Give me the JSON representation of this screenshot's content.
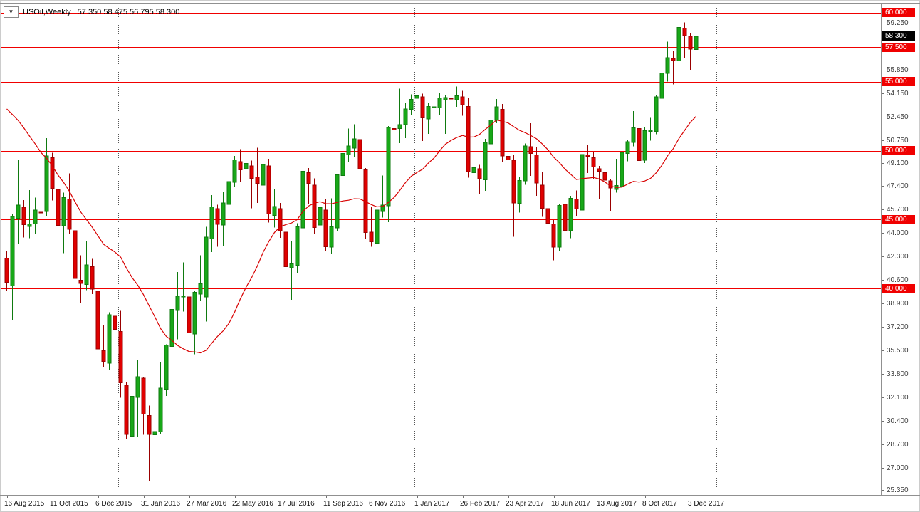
{
  "header": {
    "dropdown_icon": "▼",
    "symbol_period": "USOil,Weekly",
    "ohlc_text": "57.350 58.475 56.795 58.300"
  },
  "colors": {
    "bull": "#18a818",
    "bull_border": "#0f7a0f",
    "bear": "#e00000",
    "bear_border": "#9a0000",
    "level_line": "#f00000",
    "ma_line": "#d80000",
    "tag_red_bg": "#f00000",
    "tag_black_bg": "#000000",
    "axis_text": "#3a3a3a",
    "separator_dotted": "#555555",
    "frame": "#909090"
  },
  "chart_data": {
    "type": "candlestick",
    "title": "USOil,Weekly",
    "symbol": "USOil",
    "timeframe": "Weekly",
    "grid": "off",
    "current_bar": {
      "open": 57.35,
      "high": 58.475,
      "low": 56.795,
      "close": 58.3
    },
    "current_price": 58.3,
    "horizontal_lines": [
      60.0,
      57.5,
      55.0,
      50.0,
      45.0,
      40.0
    ],
    "period_separator_indices": [
      20,
      72,
      125
    ],
    "price_axis": {
      "ylim": [
        25.04,
        60.67
      ],
      "ticks": [
        59.25,
        55.85,
        54.15,
        52.45,
        50.75,
        49.1,
        47.4,
        45.7,
        44.0,
        42.3,
        40.6,
        38.9,
        37.2,
        35.5,
        33.8,
        32.1,
        30.4,
        28.7,
        27.0,
        25.35
      ]
    },
    "time_axis": {
      "labels": [
        {
          "index": 0,
          "label": "16 Aug 2015"
        },
        {
          "index": 8,
          "label": "11 Oct 2015"
        },
        {
          "index": 16,
          "label": "6 Dec 2015"
        },
        {
          "index": 24,
          "label": "31 Jan 2016"
        },
        {
          "index": 32,
          "label": "27 Mar 2016"
        },
        {
          "index": 40,
          "label": "22 May 2016"
        },
        {
          "index": 48,
          "label": "17 Jul 2016"
        },
        {
          "index": 56,
          "label": "11 Sep 2016"
        },
        {
          "index": 64,
          "label": "6 Nov 2016"
        },
        {
          "index": 72,
          "label": "1 Jan 2017"
        },
        {
          "index": 80,
          "label": "26 Feb 2017"
        },
        {
          "index": 88,
          "label": "23 Apr 2017"
        },
        {
          "index": 96,
          "label": "18 Jun 2017"
        },
        {
          "index": 104,
          "label": "13 Aug 2017"
        },
        {
          "index": 112,
          "label": "8 Oct 2017"
        },
        {
          "index": 120,
          "label": "3 Dec 2017"
        }
      ]
    },
    "moving_average": {
      "type": "SMA",
      "period": 20,
      "prehistory_closes": [
        53.5,
        54.5,
        55.5,
        56.5,
        57.2,
        57.8,
        58.1,
        58.3,
        57.9,
        57.5,
        57.0,
        56.2,
        55.0,
        52.7,
        50.9,
        48.1,
        47.1,
        43.9,
        42.5
      ]
    },
    "candles": [
      [
        "2015-08-16",
        42.2,
        42.69,
        39.86,
        40.45
      ],
      [
        "2015-08-23",
        40.2,
        45.41,
        37.75,
        45.22
      ],
      [
        "2015-08-30",
        45.1,
        49.33,
        43.21,
        46.05
      ],
      [
        "2015-09-06",
        45.9,
        46.43,
        43.7,
        44.63
      ],
      [
        "2015-09-13",
        44.5,
        47.15,
        43.65,
        44.68
      ],
      [
        "2015-09-20",
        44.7,
        46.6,
        43.95,
        45.7
      ],
      [
        "2015-09-27",
        45.55,
        46.3,
        43.97,
        45.54
      ],
      [
        "2015-10-04",
        45.6,
        50.92,
        45.23,
        49.63
      ],
      [
        "2015-10-11",
        49.5,
        49.84,
        46.38,
        47.26
      ],
      [
        "2015-10-18",
        47.2,
        47.74,
        44.2,
        44.6
      ],
      [
        "2015-10-25",
        44.55,
        46.95,
        42.58,
        46.59
      ],
      [
        "2015-11-01",
        46.5,
        48.36,
        43.98,
        44.29
      ],
      [
        "2015-11-08",
        44.2,
        44.82,
        40.06,
        40.74
      ],
      [
        "2015-11-15",
        40.6,
        42.42,
        38.99,
        40.39
      ],
      [
        "2015-11-22",
        40.3,
        43.46,
        39.89,
        41.71
      ],
      [
        "2015-11-29",
        41.6,
        42.16,
        39.6,
        39.97
      ],
      [
        "2015-12-06",
        39.8,
        40.16,
        35.56,
        35.62
      ],
      [
        "2015-12-13",
        35.5,
        37.38,
        34.29,
        34.73
      ],
      [
        "2015-12-20",
        34.6,
        38.28,
        34.12,
        38.1
      ],
      [
        "2015-12-27",
        38.0,
        38.09,
        36.08,
        37.04
      ],
      [
        "2016-01-03",
        36.9,
        38.39,
        32.1,
        33.16
      ],
      [
        "2016-01-10",
        33.0,
        33.2,
        29.13,
        29.42
      ],
      [
        "2016-01-17",
        29.3,
        32.74,
        26.19,
        32.19
      ],
      [
        "2016-01-24",
        32.1,
        34.82,
        29.25,
        33.62
      ],
      [
        "2016-01-31",
        33.5,
        33.6,
        29.4,
        30.89
      ],
      [
        "2016-02-07",
        30.8,
        31.53,
        26.05,
        29.44
      ],
      [
        "2016-02-14",
        29.4,
        31.98,
        28.74,
        29.64
      ],
      [
        "2016-02-21",
        29.6,
        34.69,
        29.43,
        32.78
      ],
      [
        "2016-02-28",
        32.7,
        35.97,
        32.22,
        35.92
      ],
      [
        "2016-03-06",
        35.8,
        38.93,
        35.66,
        38.5
      ],
      [
        "2016-03-13",
        38.4,
        41.2,
        36.33,
        39.44
      ],
      [
        "2016-03-20",
        39.4,
        41.9,
        38.33,
        39.46
      ],
      [
        "2016-03-27",
        39.4,
        39.79,
        36.57,
        36.79
      ],
      [
        "2016-04-03",
        36.7,
        39.84,
        35.24,
        39.72
      ],
      [
        "2016-04-10",
        39.6,
        42.42,
        39.11,
        40.36
      ],
      [
        "2016-04-17",
        39.4,
        44.49,
        37.61,
        43.73
      ],
      [
        "2016-04-24",
        43.6,
        46.78,
        42.64,
        45.92
      ],
      [
        "2016-05-01",
        45.8,
        46.07,
        43.03,
        44.66
      ],
      [
        "2016-05-08",
        44.6,
        47.02,
        43.07,
        46.21
      ],
      [
        "2016-05-15",
        46.1,
        48.28,
        45.88,
        47.75
      ],
      [
        "2016-05-22",
        47.7,
        49.62,
        47.4,
        49.33
      ],
      [
        "2016-05-29",
        49.2,
        50.1,
        47.75,
        48.62
      ],
      [
        "2016-06-05",
        48.7,
        51.67,
        48.19,
        49.07
      ],
      [
        "2016-06-12",
        48.9,
        49.28,
        45.83,
        47.98
      ],
      [
        "2016-06-19",
        48.1,
        50.21,
        46.22,
        47.64
      ],
      [
        "2016-06-26",
        47.5,
        49.6,
        45.83,
        48.99
      ],
      [
        "2016-07-03",
        48.9,
        49.41,
        44.78,
        45.41
      ],
      [
        "2016-07-10",
        45.3,
        47.22,
        44.42,
        45.95
      ],
      [
        "2016-07-17",
        45.8,
        46.2,
        43.69,
        44.19
      ],
      [
        "2016-07-24",
        44.1,
        44.53,
        40.57,
        41.6
      ],
      [
        "2016-07-31",
        41.5,
        43.42,
        39.19,
        41.8
      ],
      [
        "2016-08-07",
        41.7,
        44.75,
        41.1,
        44.49
      ],
      [
        "2016-08-14",
        44.4,
        48.75,
        44.02,
        48.52
      ],
      [
        "2016-08-21",
        48.4,
        48.73,
        46.15,
        47.64
      ],
      [
        "2016-08-28",
        47.5,
        48.0,
        43.96,
        44.44
      ],
      [
        "2016-09-04",
        44.6,
        47.75,
        43.85,
        45.88
      ],
      [
        "2016-09-11",
        45.7,
        46.48,
        42.74,
        43.03
      ],
      [
        "2016-09-18",
        43.0,
        46.55,
        42.55,
        44.48
      ],
      [
        "2016-09-25",
        44.4,
        48.32,
        44.19,
        48.24
      ],
      [
        "2016-10-02",
        48.2,
        50.46,
        47.61,
        49.81
      ],
      [
        "2016-10-09",
        49.7,
        51.6,
        49.15,
        50.35
      ],
      [
        "2016-10-16",
        50.2,
        51.93,
        49.57,
        50.85
      ],
      [
        "2016-10-23",
        50.8,
        51.1,
        48.3,
        48.7
      ],
      [
        "2016-10-30",
        48.6,
        48.74,
        43.57,
        44.07
      ],
      [
        "2016-11-06",
        44.1,
        45.95,
        43.03,
        43.41
      ],
      [
        "2016-11-13",
        43.3,
        46.58,
        42.2,
        45.69
      ],
      [
        "2016-11-20",
        45.6,
        48.19,
        45.14,
        46.06
      ],
      [
        "2016-11-27",
        46.0,
        51.8,
        44.82,
        51.68
      ],
      [
        "2016-12-04",
        51.6,
        52.42,
        49.61,
        51.5
      ],
      [
        "2016-12-11",
        51.6,
        54.51,
        50.55,
        51.9
      ],
      [
        "2016-12-18",
        51.9,
        53.45,
        50.91,
        53.02
      ],
      [
        "2016-12-25",
        53.0,
        54.09,
        52.62,
        53.72
      ],
      [
        "2017-01-01",
        53.8,
        55.24,
        52.11,
        53.99
      ],
      [
        "2017-01-08",
        53.9,
        54.13,
        50.71,
        52.37
      ],
      [
        "2017-01-15",
        52.3,
        53.48,
        51.22,
        53.22
      ],
      [
        "2017-01-22",
        53.1,
        54.08,
        52.07,
        53.17
      ],
      [
        "2017-01-29",
        53.1,
        54.2,
        52.55,
        53.83
      ],
      [
        "2017-02-05",
        53.7,
        54.07,
        51.22,
        53.86
      ],
      [
        "2017-02-12",
        53.8,
        54.32,
        52.68,
        53.78
      ],
      [
        "2017-02-19",
        53.7,
        54.66,
        53.18,
        53.99
      ],
      [
        "2017-02-26",
        53.9,
        54.34,
        52.54,
        53.33
      ],
      [
        "2017-03-05",
        53.2,
        53.8,
        48.05,
        48.49
      ],
      [
        "2017-03-12",
        48.4,
        49.62,
        47.09,
        48.78
      ],
      [
        "2017-03-19",
        48.7,
        48.97,
        46.88,
        47.97
      ],
      [
        "2017-03-26",
        47.9,
        50.85,
        47.08,
        50.6
      ],
      [
        "2017-04-02",
        50.5,
        52.94,
        50.18,
        52.24
      ],
      [
        "2017-04-09",
        52.2,
        53.76,
        52.0,
        53.18
      ],
      [
        "2017-04-16",
        53.0,
        53.4,
        49.2,
        49.62
      ],
      [
        "2017-04-23",
        49.6,
        49.97,
        48.2,
        49.33
      ],
      [
        "2017-04-30",
        49.3,
        49.66,
        43.76,
        46.22
      ],
      [
        "2017-05-07",
        46.2,
        48.07,
        45.52,
        47.84
      ],
      [
        "2017-05-14",
        47.8,
        50.53,
        47.54,
        50.33
      ],
      [
        "2017-05-21",
        50.3,
        52.0,
        48.18,
        49.8
      ],
      [
        "2017-05-28",
        49.7,
        50.28,
        46.74,
        47.66
      ],
      [
        "2017-06-04",
        47.5,
        48.43,
        45.2,
        45.83
      ],
      [
        "2017-06-11",
        45.8,
        46.71,
        44.22,
        44.74
      ],
      [
        "2017-06-18",
        44.7,
        44.98,
        42.05,
        43.01
      ],
      [
        "2017-06-25",
        43.0,
        46.15,
        42.75,
        46.04
      ],
      [
        "2017-07-02",
        46.1,
        47.32,
        43.78,
        44.23
      ],
      [
        "2017-07-09",
        44.2,
        46.74,
        43.65,
        46.54
      ],
      [
        "2017-07-16",
        46.5,
        47.12,
        45.29,
        45.77
      ],
      [
        "2017-07-23",
        45.7,
        49.78,
        45.4,
        49.71
      ],
      [
        "2017-07-30",
        49.7,
        50.43,
        48.37,
        49.58
      ],
      [
        "2017-08-06",
        49.5,
        49.92,
        47.98,
        48.82
      ],
      [
        "2017-08-13",
        48.7,
        48.9,
        46.46,
        48.51
      ],
      [
        "2017-08-20",
        48.4,
        48.59,
        47.03,
        47.87
      ],
      [
        "2017-08-27",
        47.8,
        47.98,
        45.58,
        47.29
      ],
      [
        "2017-09-03",
        47.2,
        49.42,
        46.95,
        47.48
      ],
      [
        "2017-09-10",
        47.4,
        50.5,
        47.2,
        49.89
      ],
      [
        "2017-09-17",
        49.8,
        50.79,
        49.22,
        50.66
      ],
      [
        "2017-09-24",
        50.6,
        52.86,
        50.31,
        51.67
      ],
      [
        "2017-10-01",
        51.6,
        52.18,
        49.12,
        49.29
      ],
      [
        "2017-10-08",
        49.3,
        51.71,
        49.1,
        51.45
      ],
      [
        "2017-10-15",
        51.4,
        52.37,
        50.74,
        51.47
      ],
      [
        "2017-10-22",
        51.4,
        54.07,
        51.19,
        53.9
      ],
      [
        "2017-10-29",
        53.8,
        55.67,
        53.37,
        55.64
      ],
      [
        "2017-11-05",
        55.6,
        57.92,
        55.02,
        56.74
      ],
      [
        "2017-11-12",
        56.7,
        57.2,
        54.81,
        56.55
      ],
      [
        "2017-11-19",
        56.5,
        59.05,
        55.08,
        58.95
      ],
      [
        "2017-11-26",
        58.9,
        59.3,
        56.75,
        58.36
      ],
      [
        "2017-12-03",
        58.3,
        58.56,
        55.82,
        57.36
      ],
      [
        "2017-12-10",
        57.35,
        58.475,
        56.795,
        58.3
      ]
    ]
  }
}
